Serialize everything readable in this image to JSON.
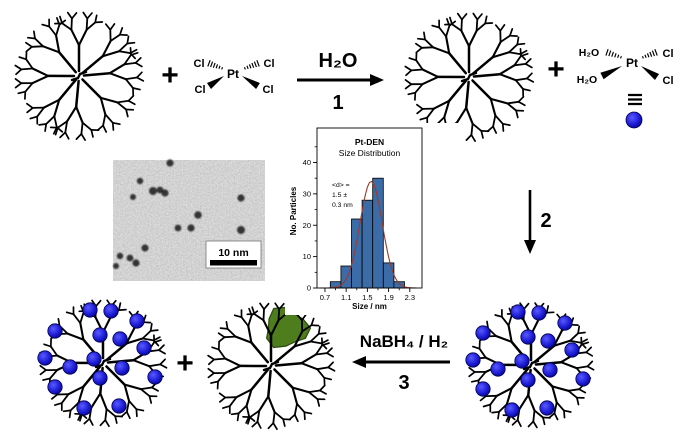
{
  "scheme": {
    "plus_signs": [
      "+",
      "+",
      "+"
    ],
    "step_labels": [
      "1",
      "2",
      "3"
    ],
    "arrow1_reagent": "H₂O",
    "arrow3_reagent": "NaBH₄ / H₂",
    "ptcl4_complex": {
      "pt": "Pt",
      "cl_top_left": "Cl",
      "cl_top_right": "Cl",
      "cl_bottom_left": "Cl",
      "cl_bottom_right": "Cl"
    },
    "pt_aqua_complex": {
      "pt": "Pt",
      "h2o_top_left": "H₂O",
      "cl_top_right": "Cl",
      "h2o_bottom_left": "H₂O",
      "cl_bottom_right": "Cl"
    },
    "tem": {
      "scale_label": "10 nm"
    },
    "colors": {
      "pt_ion_blue": "#1e1ed2",
      "pt_ion_edge": "#000085",
      "nanoparticle_green": "#4e7d1e",
      "ink": "#000000"
    }
  },
  "chart_data": {
    "type": "bar",
    "title": "Pt-DEN",
    "subtitle": "Size Distribution",
    "xlabel": "Size / nm",
    "ylabel": "No. Particles",
    "annotation": [
      "<d> =",
      "1.5 ±",
      "0.3 nm"
    ],
    "bin_centers": [
      0.9,
      1.1,
      1.3,
      1.5,
      1.7,
      1.9,
      2.1
    ],
    "bin_width": 0.2,
    "values": [
      2,
      7,
      22,
      28,
      35,
      8,
      2
    ],
    "xticks": [
      0.7,
      1.1,
      1.5,
      1.9,
      2.3
    ],
    "xticks_minor": [
      0.9,
      1.3,
      1.7,
      2.1
    ],
    "yticks": [
      0,
      10,
      20,
      30,
      40
    ],
    "yticks_minor": [
      5,
      15,
      25,
      35,
      45
    ],
    "xlim": [
      0.55,
      2.53
    ],
    "ylim": [
      0,
      51
    ],
    "grid": false,
    "fit_curve": {
      "type": "gaussian",
      "mean": 1.57,
      "sigma": 0.21,
      "amplitude": 34
    },
    "bar_color": "#3b6ca8",
    "curve_color": "#993b2b"
  }
}
